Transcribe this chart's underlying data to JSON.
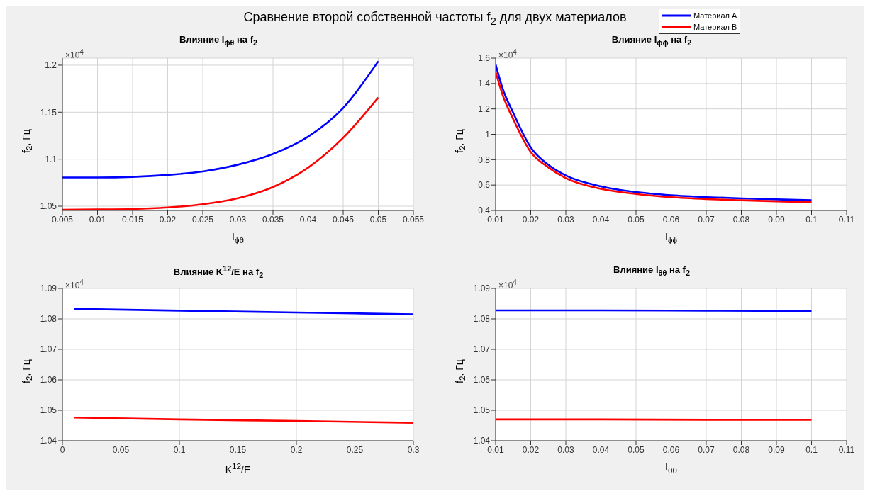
{
  "chart_data": [
    {
      "type": "line",
      "title": "Сравнение второй собственной частоты f$_{2}$ для двух материалов",
      "subtitle": "Влияние I$_{ϕθ}$ на f$_{2}$",
      "xlabel": "I$_{ϕθ}$",
      "ylabel": "f$_{2}$, Гц",
      "annotations": [
        "×10$^{4}$"
      ],
      "x": [
        0.005,
        0.01,
        0.015,
        0.02,
        0.025,
        0.03,
        0.035,
        0.04,
        0.045,
        0.05
      ],
      "series": [
        {
          "color": "#0000ff",
          "values": [
            1.0805,
            1.0805,
            1.0812,
            1.0833,
            1.087,
            1.0942,
            1.1056,
            1.124,
            1.1545,
            1.2042
          ]
        },
        {
          "color": "#ff0000",
          "values": [
            1.0463,
            1.0465,
            1.047,
            1.0487,
            1.0521,
            1.0585,
            1.0704,
            1.091,
            1.1228,
            1.1656
          ]
        }
      ],
      "xlim": [
        0.005,
        0.055
      ],
      "xticks": [
        0.005,
        0.01,
        0.015,
        0.02,
        0.025,
        0.03,
        0.035,
        0.04,
        0.045,
        0.05,
        0.055
      ],
      "ylim": [
        1.0455,
        1.2075
      ],
      "yticks": [
        1.05,
        1.1,
        1.15,
        1.2
      ],
      "grid": true,
      "marker": "none",
      "line_style": "solid"
    },
    {
      "type": "line",
      "title": "Влияние I$_{ϕϕ}$ на f$_{2}$",
      "xlabel": "I$_{ϕϕ}$",
      "ylabel": "f$_{2}$, Гц",
      "annotations": [
        "×10$^{4}$"
      ],
      "x": [
        0.01,
        0.012,
        0.015,
        0.02,
        0.025,
        0.03,
        0.04,
        0.05,
        0.06,
        0.07,
        0.08,
        0.09,
        0.1
      ],
      "series": [
        {
          "name": "Материал A",
          "color": "#0000ff",
          "values": [
            1.55,
            1.36,
            1.17,
            0.897,
            0.76,
            0.676,
            0.59,
            0.545,
            0.52,
            0.505,
            0.495,
            0.487,
            0.48
          ]
        },
        {
          "name": "Материал B",
          "color": "#ff0000",
          "values": [
            1.49,
            1.31,
            1.12,
            0.86,
            0.74,
            0.655,
            0.57,
            0.53,
            0.505,
            0.49,
            0.48,
            0.472,
            0.465
          ]
        }
      ],
      "xlim": [
        0.01,
        0.11
      ],
      "xticks": [
        0.01,
        0.02,
        0.03,
        0.04,
        0.05,
        0.06,
        0.07,
        0.08,
        0.09,
        0.1,
        0.11
      ],
      "ylim": [
        0.4,
        1.6
      ],
      "yticks": [
        0.4,
        0.6,
        0.8,
        1,
        1.2,
        1.4,
        1.6
      ],
      "grid": true,
      "legend": "top",
      "marker": "none",
      "line_style": "solid"
    },
    {
      "type": "line",
      "title": "Влияние K$^{12}$/E на f$_{2}$",
      "xlabel": "K$^{12}$/E",
      "ylabel": "f$_{2}$, Гц",
      "annotations": [
        "×10$^{4}$"
      ],
      "x": [
        0.01,
        0.1,
        0.2,
        0.3
      ],
      "series": [
        {
          "color": "#0000ff",
          "values": [
            1.0833,
            1.0827,
            1.0821,
            1.0815
          ]
        },
        {
          "color": "#ff0000",
          "values": [
            1.0476,
            1.047,
            1.0465,
            1.0459
          ]
        }
      ],
      "xlim": [
        0,
        0.3
      ],
      "xticks": [
        0,
        0.05,
        0.1,
        0.15,
        0.2,
        0.25,
        0.3
      ],
      "ylim": [
        1.04,
        1.09
      ],
      "yticks": [
        1.04,
        1.05,
        1.06,
        1.07,
        1.08,
        1.09
      ],
      "grid": true,
      "marker": "none",
      "line_style": "solid"
    },
    {
      "type": "line",
      "title": "Влияние I$_{θθ}$ на f$_{2}$",
      "xlabel": "I$_{θθ}$",
      "ylabel": "f$_{2}$, Гц",
      "annotations": [
        "×10$^{4}$"
      ],
      "x": [
        0.01,
        0.04,
        0.07,
        0.1
      ],
      "series": [
        {
          "color": "#0000ff",
          "values": [
            1.0828,
            1.0828,
            1.0827,
            1.0826
          ]
        },
        {
          "color": "#ff0000",
          "values": [
            1.047,
            1.047,
            1.0469,
            1.0469
          ]
        }
      ],
      "xlim": [
        0.01,
        0.11
      ],
      "xticks": [
        0.01,
        0.02,
        0.03,
        0.04,
        0.05,
        0.06,
        0.07,
        0.08,
        0.09,
        0.1,
        0.11
      ],
      "ylim": [
        1.04,
        1.09
      ],
      "yticks": [
        1.04,
        1.05,
        1.06,
        1.07,
        1.08,
        1.09
      ],
      "grid": true,
      "marker": "none",
      "line_style": "solid"
    }
  ]
}
